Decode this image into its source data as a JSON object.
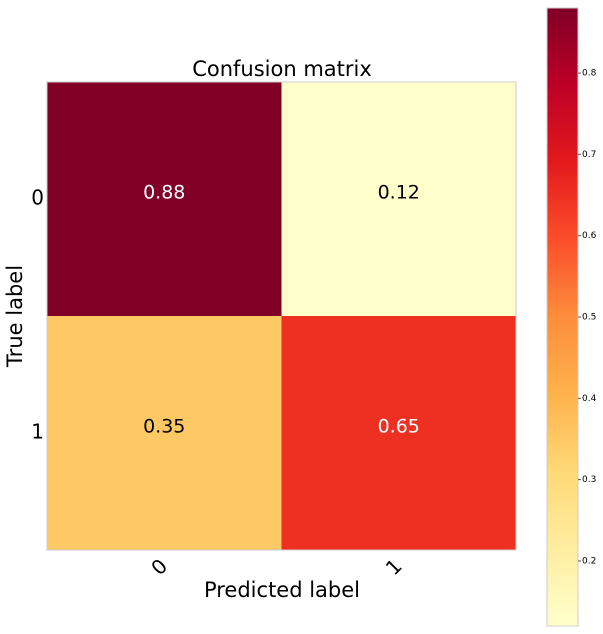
{
  "chart_data": {
    "type": "heatmap",
    "title": "Confusion matrix",
    "xlabel": "Predicted label",
    "ylabel": "True label",
    "x_categories": [
      "0",
      "1"
    ],
    "y_categories": [
      "0",
      "1"
    ],
    "values": [
      [
        0.88,
        0.12
      ],
      [
        0.35,
        0.65
      ]
    ],
    "colormap": "YlOrRd",
    "clim": [
      0.12,
      0.88
    ],
    "colorbar_ticks": [
      0.2,
      0.3,
      0.4,
      0.5,
      0.6,
      0.7,
      0.8
    ]
  }
}
